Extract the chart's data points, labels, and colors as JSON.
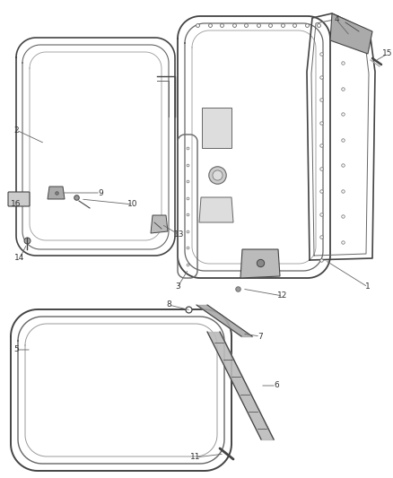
{
  "bg_color": "#ffffff",
  "lc": "#666666",
  "lc_dark": "#444444",
  "lc_light": "#999999",
  "label_fontsize": 6.5,
  "figsize": [
    4.38,
    5.33
  ],
  "dpi": 100
}
